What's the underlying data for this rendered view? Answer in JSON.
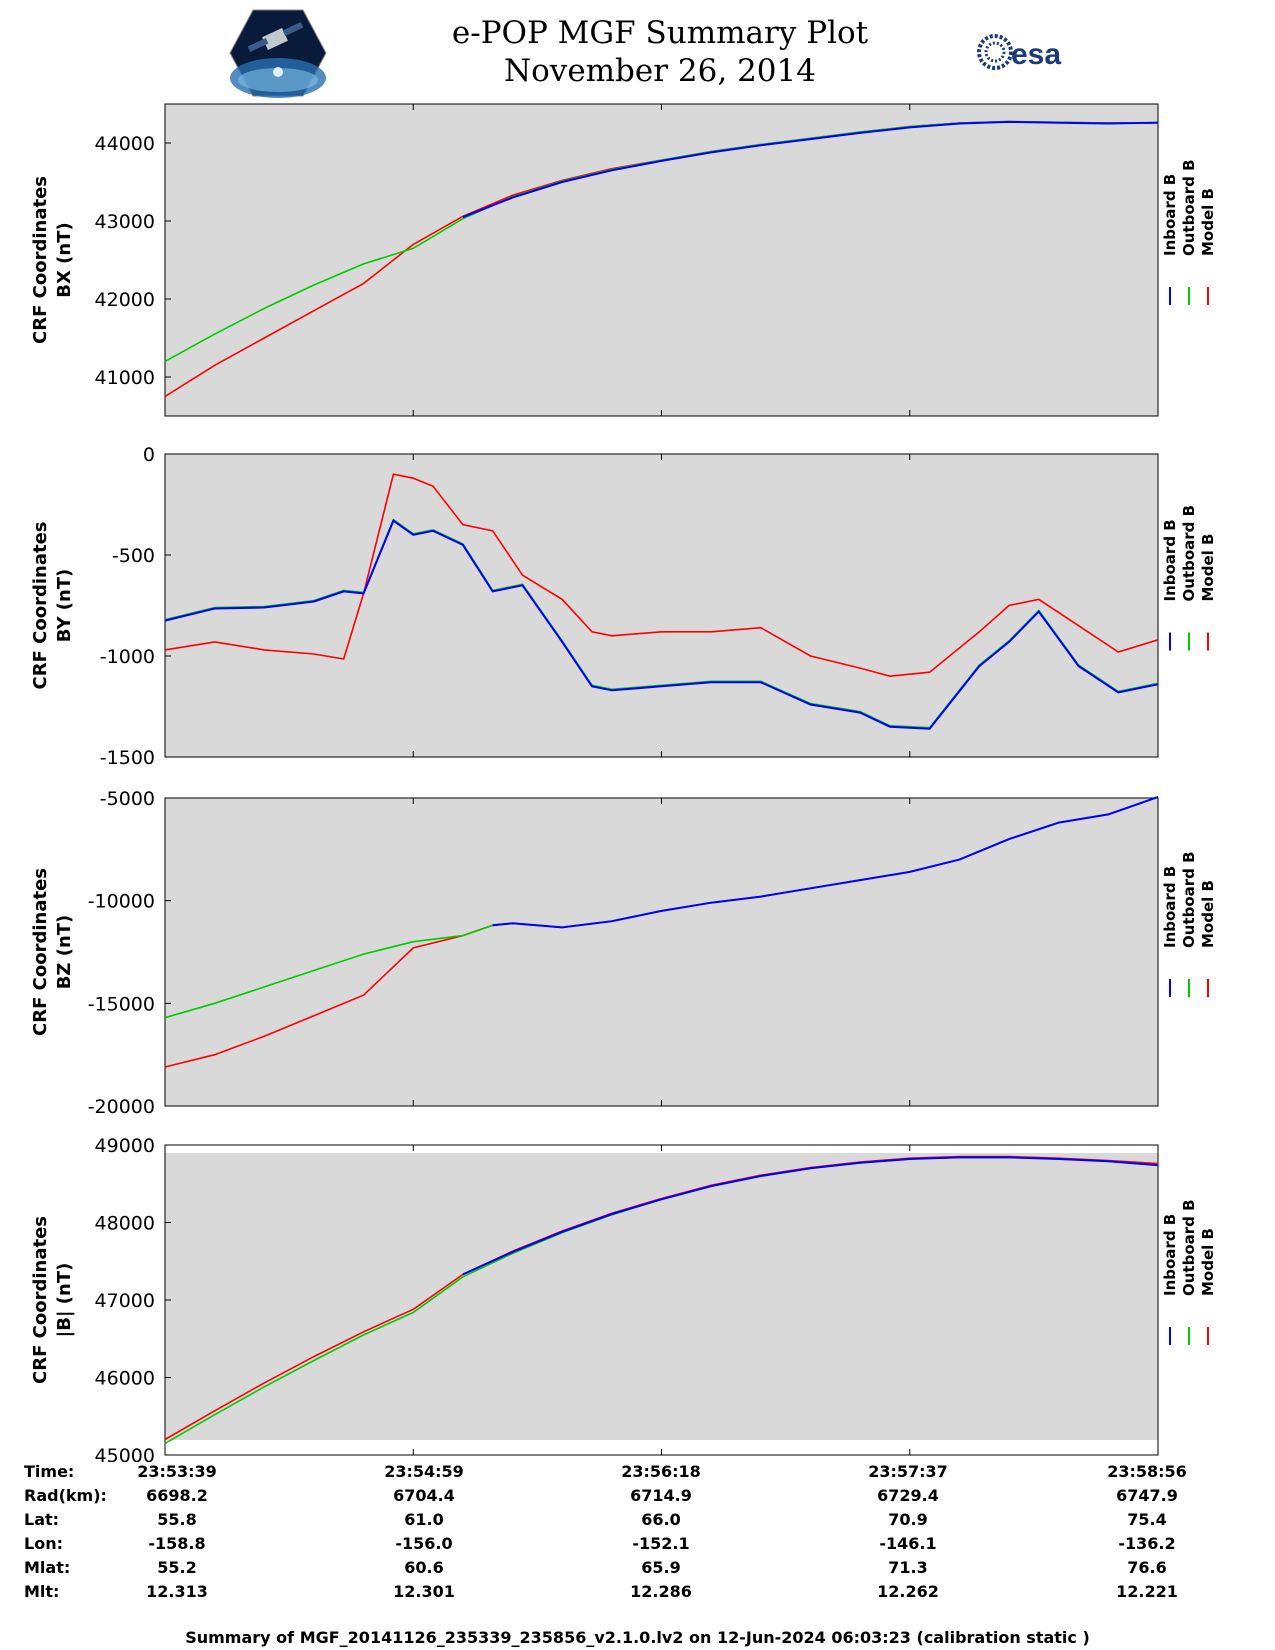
{
  "header": {
    "title": "e-POP MGF Summary Plot",
    "date": "November 26, 2014",
    "esa_logo_text": "esa"
  },
  "colors": {
    "inboard": "#0000ff",
    "outboard": "#00cc00",
    "model": "#ff0000",
    "plot_bg": "#d9d9d9"
  },
  "legend": {
    "inboard": "Inboard B",
    "outboard": "Outboard B",
    "model": "Model B"
  },
  "chart_data": [
    {
      "type": "line",
      "ylabel_line1": "CRF Coordinates",
      "ylabel_line2": "BX (nT)",
      "ylim": [
        40500,
        44500
      ],
      "yticks": [
        41000,
        42000,
        43000,
        44000
      ],
      "x": [
        0,
        0.05,
        0.1,
        0.15,
        0.2,
        0.25,
        0.3,
        0.35,
        0.4,
        0.45,
        0.5,
        0.55,
        0.6,
        0.65,
        0.7,
        0.75,
        0.8,
        0.85,
        0.9,
        0.95,
        1
      ],
      "series": [
        {
          "name": "Inboard B",
          "x_start": 0.3,
          "values": [
            null,
            null,
            null,
            null,
            null,
            null,
            43050,
            43300,
            43500,
            43650,
            43770,
            43880,
            43970,
            44050,
            44130,
            44200,
            44250,
            44270,
            44260,
            44250,
            44260
          ]
        },
        {
          "name": "Outboard B",
          "x_start": 0,
          "values": [
            41200,
            41550,
            41880,
            42180,
            42450,
            42650,
            43030,
            43310,
            43510,
            43660,
            43780,
            43890,
            43980,
            44060,
            44140,
            44210,
            44255,
            44275,
            44265,
            44255,
            44262
          ]
        },
        {
          "name": "Model B",
          "x_start": 0,
          "values": [
            40750,
            41150,
            41500,
            41850,
            42200,
            42700,
            43060,
            43330,
            43520,
            43670,
            43780,
            43890,
            43980,
            44060,
            44140,
            44210,
            44255,
            44275,
            44265,
            44255,
            44262
          ]
        }
      ]
    },
    {
      "type": "line",
      "ylabel_line1": "CRF Coordinates",
      "ylabel_line2": "BY (nT)",
      "ylim": [
        -1500,
        0
      ],
      "yticks": [
        -1500,
        -1000,
        -500,
        0
      ],
      "x": [
        0,
        0.05,
        0.1,
        0.15,
        0.18,
        0.2,
        0.23,
        0.25,
        0.27,
        0.3,
        0.33,
        0.36,
        0.4,
        0.43,
        0.45,
        0.5,
        0.55,
        0.6,
        0.65,
        0.7,
        0.73,
        0.77,
        0.82,
        0.85,
        0.88,
        0.92,
        0.96,
        1
      ],
      "series": [
        {
          "name": "Inboard B",
          "values": [
            -825,
            -765,
            -760,
            -730,
            -680,
            -690,
            -330,
            -400,
            -380,
            -450,
            -680,
            -650,
            -930,
            -1150,
            -1170,
            -1150,
            -1130,
            -1130,
            -1240,
            -1280,
            -1350,
            -1360,
            -1050,
            -930,
            -780,
            -1050,
            -1180,
            -1140
          ]
        },
        {
          "name": "Outboard B",
          "values": [
            -820,
            -760,
            -755,
            -725,
            -675,
            -685,
            -325,
            -395,
            -375,
            -445,
            -675,
            -645,
            -925,
            -1145,
            -1165,
            -1145,
            -1125,
            -1125,
            -1235,
            -1275,
            -1345,
            -1355,
            -1045,
            -925,
            -775,
            -1045,
            -1175,
            -1135
          ]
        },
        {
          "name": "Model B",
          "values": [
            -970,
            -930,
            -970,
            -990,
            -1015,
            -690,
            -100,
            -120,
            -160,
            -350,
            -380,
            -600,
            -720,
            -880,
            -900,
            -880,
            -880,
            -860,
            -1000,
            -1060,
            -1100,
            -1080,
            -880,
            -750,
            -720,
            -850,
            -980,
            -920
          ]
        }
      ]
    },
    {
      "type": "line",
      "ylabel_line1": "CRF Coordinates",
      "ylabel_line2": "BZ (nT)",
      "ylim": [
        -20000,
        -5000
      ],
      "yticks": [
        -20000,
        -15000,
        -10000,
        -5000
      ],
      "x": [
        0,
        0.05,
        0.1,
        0.15,
        0.2,
        0.25,
        0.3,
        0.33,
        0.35,
        0.4,
        0.45,
        0.5,
        0.55,
        0.6,
        0.65,
        0.7,
        0.75,
        0.8,
        0.85,
        0.9,
        0.95,
        1
      ],
      "series": [
        {
          "name": "Inboard B",
          "values": [
            null,
            null,
            null,
            null,
            null,
            null,
            null,
            -11200,
            -11100,
            -11300,
            -11000,
            -10500,
            -10100,
            -9800,
            -9400,
            -9000,
            -8600,
            -8000,
            -7000,
            -6200,
            -5800,
            -4950
          ]
        },
        {
          "name": "Outboard B",
          "values": [
            -15700,
            -15000,
            -14200,
            -13400,
            -12600,
            -12000,
            -11700,
            -11200,
            -11100,
            -11300,
            -11000,
            -10500,
            -10100,
            -9800,
            -9400,
            -9000,
            -8600,
            -8000,
            -7000,
            -6200,
            -5800,
            -4950
          ]
        },
        {
          "name": "Model B",
          "values": [
            -18100,
            -17500,
            -16600,
            -15600,
            -14600,
            -12300,
            -11700,
            -11200,
            -11100,
            -11300,
            -11000,
            -10500,
            -10100,
            -9800,
            -9400,
            -9000,
            -8600,
            -8000,
            -7000,
            -6200,
            -5800,
            -4950
          ]
        }
      ]
    },
    {
      "type": "line",
      "ylabel_line1": "CRF Coordinates",
      "ylabel_line2": "|B| (nT)",
      "ylim": [
        45000,
        49000
      ],
      "yticks": [
        45000,
        46000,
        47000,
        48000,
        49000
      ],
      "x": [
        0,
        0.05,
        0.1,
        0.15,
        0.2,
        0.25,
        0.3,
        0.35,
        0.4,
        0.45,
        0.5,
        0.55,
        0.6,
        0.65,
        0.7,
        0.75,
        0.8,
        0.85,
        0.9,
        0.95,
        1
      ],
      "series": [
        {
          "name": "Inboard B",
          "values": [
            null,
            null,
            null,
            null,
            null,
            null,
            47330,
            47620,
            47880,
            48110,
            48300,
            48470,
            48600,
            48700,
            48770,
            48820,
            48840,
            48840,
            48820,
            48790,
            48740
          ]
        },
        {
          "name": "Outboard B",
          "values": [
            45150,
            45520,
            45880,
            46220,
            46550,
            46840,
            47300,
            47600,
            47870,
            48100,
            48300,
            48470,
            48600,
            48700,
            48770,
            48820,
            48840,
            48840,
            48820,
            48790,
            48740
          ]
        },
        {
          "name": "Model B",
          "values": [
            45200,
            45570,
            45930,
            46270,
            46590,
            46880,
            47330,
            47630,
            47890,
            48120,
            48310,
            48480,
            48610,
            48710,
            48780,
            48830,
            48850,
            48850,
            48830,
            48800,
            48760
          ]
        }
      ]
    }
  ],
  "ephemeris": {
    "labels": [
      "Time:",
      "Rad(km):",
      "Lat:",
      "Lon:",
      "Mlat:",
      "Mlt:"
    ],
    "columns": [
      [
        "23:53:39",
        "6698.2",
        "55.8",
        "-158.8",
        "55.2",
        "12.313"
      ],
      [
        "23:54:59",
        "6704.4",
        "61.0",
        "-156.0",
        "60.6",
        "12.301"
      ],
      [
        "23:56:18",
        "6714.9",
        "66.0",
        "-152.1",
        "65.9",
        "12.286"
      ],
      [
        "23:57:37",
        "6729.4",
        "70.9",
        "-146.1",
        "71.3",
        "12.262"
      ],
      [
        "23:58:56",
        "6747.9",
        "75.4",
        "-136.2",
        "76.6",
        "12.221"
      ]
    ]
  },
  "footer": "Summary of MGF_20141126_235339_235856_v2.1.0.lv2 on 12-Jun-2024 06:03:23 (calibration static )"
}
